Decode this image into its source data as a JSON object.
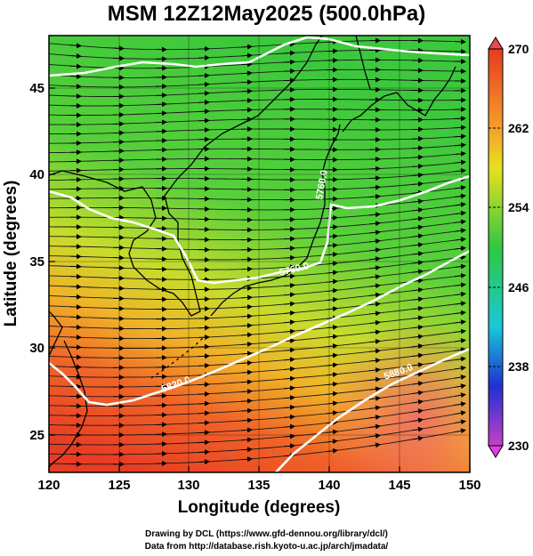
{
  "title": "MSM 12Z12May2025 (500.0hPa)",
  "x_axis": {
    "label": "Longitude (degrees)",
    "ticks": [
      "120",
      "125",
      "130",
      "135",
      "140",
      "145",
      "150"
    ],
    "range": [
      120,
      150
    ]
  },
  "y_axis": {
    "label": "Latitude  (degrees)",
    "ticks": [
      "25",
      "30",
      "35",
      "40",
      "45"
    ],
    "range": [
      22.4,
      47.6
    ]
  },
  "colorbar": {
    "labels": [
      "270",
      "262",
      "254",
      "246",
      "238",
      "230"
    ],
    "range": [
      230,
      270
    ]
  },
  "contours": [
    {
      "label": "5760.0",
      "value": 5760
    },
    {
      "label": "5820.0",
      "value": 5820
    },
    {
      "label": "5880.0",
      "value": 5880
    }
  ],
  "footer": {
    "line1": "Drawing by DCL (https://www.gfd-dennou.org/library/dcl/)",
    "line2": "Data from http://database.rish.kyoto-u.ac.jp/arch/jmadata/"
  },
  "colors": {
    "cold": "#c840c8",
    "cool": "#2030d0",
    "mid": "#30c840",
    "warm": "#e8e020",
    "hot": "#e83020"
  }
}
